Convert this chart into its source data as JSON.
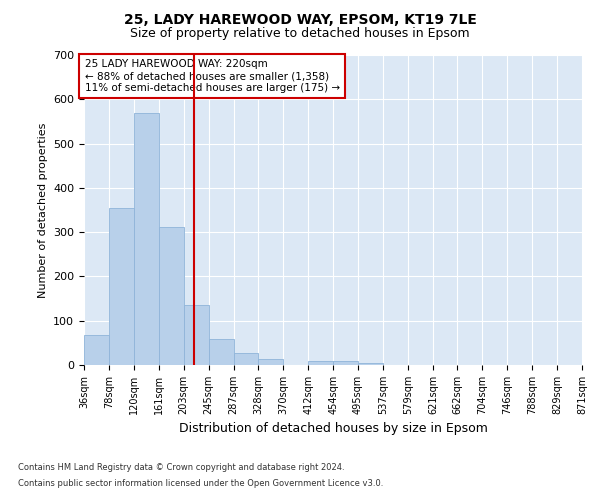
{
  "title_line1": "25, LADY HAREWOOD WAY, EPSOM, KT19 7LE",
  "title_line2": "Size of property relative to detached houses in Epsom",
  "xlabel": "Distribution of detached houses by size in Epsom",
  "ylabel": "Number of detached properties",
  "footer_line1": "Contains HM Land Registry data © Crown copyright and database right 2024.",
  "footer_line2": "Contains public sector information licensed under the Open Government Licence v3.0.",
  "annotation_line1": "25 LADY HAREWOOD WAY: 220sqm",
  "annotation_line2": "← 88% of detached houses are smaller (1,358)",
  "annotation_line3": "11% of semi-detached houses are larger (175) →",
  "property_size": 220,
  "bin_edges": [
    36,
    78,
    120,
    161,
    203,
    245,
    287,
    328,
    370,
    412,
    454,
    495,
    537,
    579,
    621,
    662,
    704,
    746,
    788,
    829,
    871
  ],
  "bar_heights": [
    68,
    355,
    568,
    312,
    135,
    58,
    27,
    14,
    0,
    10,
    10,
    5,
    0,
    0,
    0,
    0,
    0,
    0,
    0,
    0
  ],
  "bar_color": "#b8d0ea",
  "bar_edge_color": "#8fb4d9",
  "vline_color": "#cc0000",
  "vline_x": 220,
  "ylim": [
    0,
    700
  ],
  "yticks": [
    0,
    100,
    200,
    300,
    400,
    500,
    600,
    700
  ],
  "plot_bg_color": "#dce8f5",
  "grid_color": "#ffffff",
  "title1_fontsize": 10,
  "title2_fontsize": 9
}
